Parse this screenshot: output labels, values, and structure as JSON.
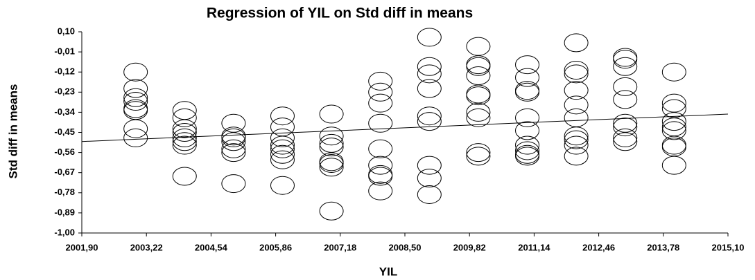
{
  "chart_data": {
    "type": "scatter",
    "title": "Regression of YIL on Std diff in means",
    "x_label": "YIL",
    "y_label": "Std diff in means",
    "xlim": [
      2001.9,
      2015.1
    ],
    "ylim": [
      -1.0,
      0.1
    ],
    "xticks": [
      {
        "value": 2001.9,
        "label": "2001,90"
      },
      {
        "value": 2003.22,
        "label": "2003,22"
      },
      {
        "value": 2004.54,
        "label": "2004,54"
      },
      {
        "value": 2005.86,
        "label": "2005,86"
      },
      {
        "value": 2007.18,
        "label": "2007,18"
      },
      {
        "value": 2008.5,
        "label": "2008,50"
      },
      {
        "value": 2009.82,
        "label": "2009,82"
      },
      {
        "value": 2011.14,
        "label": "2011,14"
      },
      {
        "value": 2012.46,
        "label": "2012,46"
      },
      {
        "value": 2013.78,
        "label": "2013,78"
      },
      {
        "value": 2015.1,
        "label": "2015,10"
      }
    ],
    "yticks": [
      {
        "value": 0.1,
        "label": "0,10"
      },
      {
        "value": -0.01,
        "label": "-0,01"
      },
      {
        "value": -0.12,
        "label": "-0,12"
      },
      {
        "value": -0.23,
        "label": "-0,23"
      },
      {
        "value": -0.34,
        "label": "-0,34"
      },
      {
        "value": -0.45,
        "label": "-0,45"
      },
      {
        "value": -0.56,
        "label": "-0,56"
      },
      {
        "value": -0.67,
        "label": "-0,67"
      },
      {
        "value": -0.78,
        "label": "-0,78"
      },
      {
        "value": -0.89,
        "label": "-0,89"
      },
      {
        "value": -1.0,
        "label": "-1,00"
      }
    ],
    "x": [
      2003,
      2003,
      2003,
      2003,
      2003,
      2003,
      2003,
      2003,
      2004,
      2004,
      2004,
      2004,
      2004,
      2004,
      2004,
      2004,
      2005,
      2005,
      2005,
      2005,
      2005,
      2005,
      2005,
      2006,
      2006,
      2006,
      2006,
      2006,
      2006,
      2006,
      2006,
      2007,
      2007,
      2007,
      2007,
      2007,
      2007,
      2007,
      2007,
      2008,
      2008,
      2008,
      2008,
      2008,
      2008,
      2008,
      2008,
      2008,
      2009,
      2009,
      2009,
      2009,
      2009,
      2009,
      2009,
      2009,
      2009,
      2010,
      2010,
      2010,
      2010,
      2010,
      2010,
      2010,
      2010,
      2010,
      2010,
      2011,
      2011,
      2011,
      2011,
      2011,
      2011,
      2011,
      2011,
      2011,
      2011,
      2012,
      2012,
      2012,
      2012,
      2012,
      2012,
      2012,
      2012,
      2012,
      2012,
      2013,
      2013,
      2013,
      2013,
      2013,
      2013,
      2013,
      2013,
      2013,
      2014,
      2014,
      2014,
      2014,
      2014,
      2014,
      2014,
      2014,
      2014
    ],
    "values": [
      -0.12,
      -0.21,
      -0.26,
      -0.28,
      -0.32,
      -0.33,
      -0.43,
      -0.48,
      -0.33,
      -0.37,
      -0.43,
      -0.45,
      -0.48,
      -0.5,
      -0.52,
      -0.69,
      -0.4,
      -0.47,
      -0.48,
      -0.5,
      -0.54,
      -0.56,
      -0.73,
      -0.36,
      -0.42,
      -0.48,
      -0.52,
      -0.54,
      -0.57,
      -0.6,
      -0.74,
      -0.35,
      -0.47,
      -0.51,
      -0.53,
      -0.61,
      -0.62,
      -0.64,
      -0.88,
      -0.17,
      -0.23,
      -0.29,
      -0.4,
      -0.54,
      -0.63,
      -0.68,
      -0.69,
      -0.77,
      0.07,
      -0.09,
      -0.13,
      -0.21,
      -0.36,
      -0.39,
      -0.63,
      -0.7,
      -0.79,
      0.02,
      -0.08,
      -0.09,
      -0.14,
      -0.24,
      -0.25,
      -0.34,
      -0.37,
      -0.56,
      -0.58,
      -0.08,
      -0.15,
      -0.22,
      -0.23,
      -0.37,
      -0.44,
      -0.52,
      -0.55,
      -0.58,
      -0.57,
      0.04,
      -0.11,
      -0.13,
      -0.22,
      -0.3,
      -0.37,
      -0.47,
      -0.49,
      -0.52,
      -0.58,
      -0.04,
      -0.05,
      -0.09,
      -0.2,
      -0.27,
      -0.4,
      -0.42,
      -0.48,
      -0.5,
      -0.12,
      -0.29,
      -0.32,
      -0.39,
      -0.42,
      -0.44,
      -0.52,
      -0.53,
      -0.63
    ],
    "color": "#000000",
    "regression": {
      "x": [
        2001.9,
        2015.1
      ],
      "y": [
        -0.5,
        -0.35
      ]
    }
  }
}
